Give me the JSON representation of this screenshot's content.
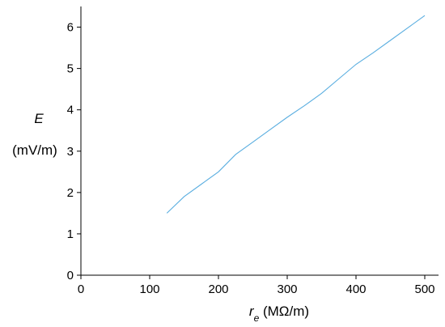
{
  "colors": {
    "series": "#5aaee0",
    "axis": "#000000",
    "background": "#ffffff"
  },
  "chart_data": {
    "type": "line",
    "title": "",
    "xlabel": {
      "symbol": "r",
      "subscript": "e",
      "unit": " (MΩ/m)"
    },
    "ylabel": {
      "symbol": "E",
      "unit": "(mV/m)"
    },
    "xlim": [
      0,
      520
    ],
    "ylim": [
      0,
      6.5
    ],
    "xticks": [
      0,
      100,
      200,
      300,
      400,
      500
    ],
    "yticks": [
      0,
      1,
      2,
      3,
      4,
      5,
      6
    ],
    "grid": false,
    "legend": "none",
    "series": [
      {
        "x": [
          125,
          150,
          175,
          200,
          225,
          250,
          275,
          300,
          325,
          350,
          375,
          400,
          425,
          450,
          475,
          500
        ],
        "y": [
          1.5,
          1.9,
          2.2,
          2.5,
          2.92,
          3.22,
          3.52,
          3.82,
          4.1,
          4.4,
          4.75,
          5.1,
          5.38,
          5.68,
          5.98,
          6.28
        ]
      }
    ]
  }
}
